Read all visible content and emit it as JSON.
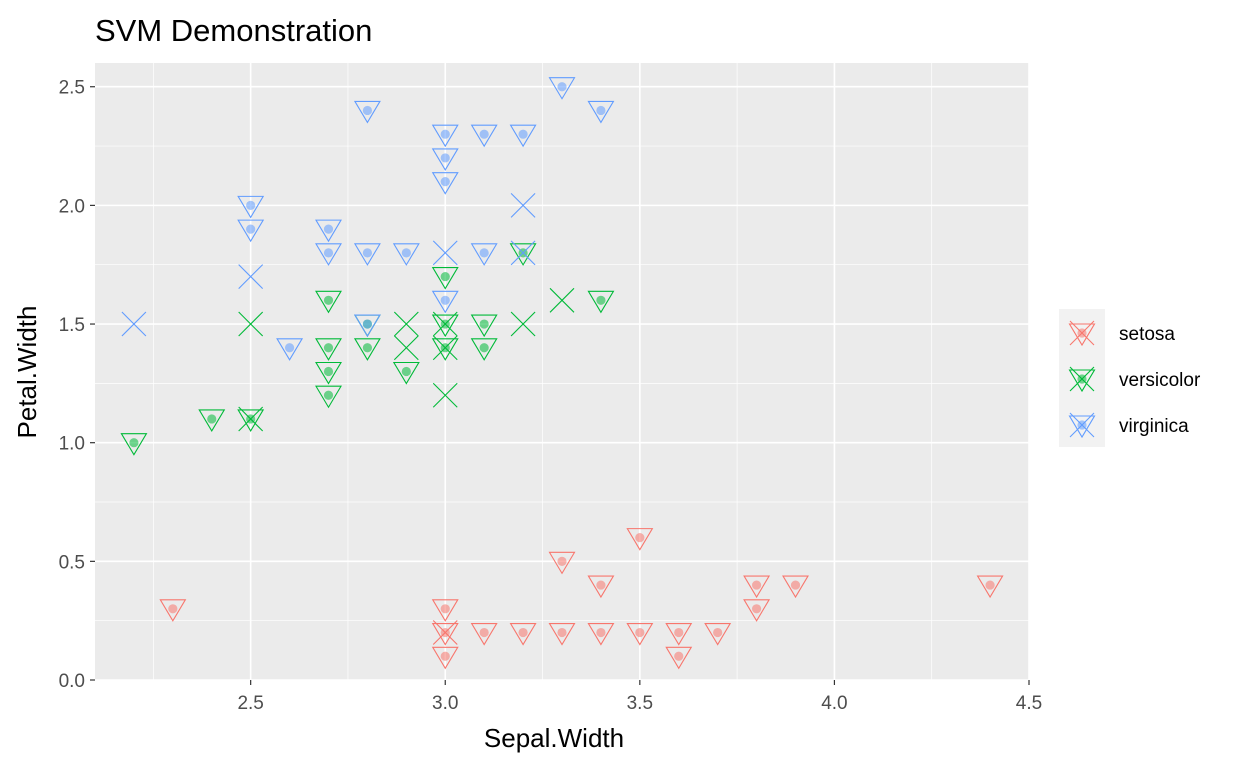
{
  "chart_data": {
    "type": "scatter",
    "title": "SVM Demonstration",
    "xlabel": "Sepal.Width",
    "ylabel": "Petal.Width",
    "xlim": [
      2.1,
      4.5
    ],
    "ylim": [
      0,
      2.6
    ],
    "x_ticks": [
      "2.5",
      "3.0",
      "3.5",
      "4.0",
      "4.5"
    ],
    "y_ticks": [
      "0.0",
      "0.5",
      "1.0",
      "1.5",
      "2.0",
      "2.5"
    ],
    "grid": true,
    "legend_position": "right",
    "panel_color": "#ebebeb",
    "grid_color": "#ffffff",
    "series": [
      {
        "name": "setosa",
        "color": "#f8766d",
        "data_points": [
          [
            2.3,
            0.3
          ],
          [
            3.0,
            0.3
          ],
          [
            3.0,
            0.2
          ],
          [
            3.0,
            0.1
          ],
          [
            3.1,
            0.2
          ],
          [
            3.2,
            0.2
          ],
          [
            3.3,
            0.5
          ],
          [
            3.3,
            0.2
          ],
          [
            3.4,
            0.4
          ],
          [
            3.4,
            0.2
          ],
          [
            3.5,
            0.6
          ],
          [
            3.5,
            0.2
          ],
          [
            3.6,
            0.2
          ],
          [
            3.6,
            0.1
          ],
          [
            3.7,
            0.2
          ],
          [
            3.8,
            0.4
          ],
          [
            3.8,
            0.3
          ],
          [
            3.9,
            0.4
          ],
          [
            4.4,
            0.4
          ]
        ],
        "support_vectors": [
          [
            3.0,
            0.2
          ]
        ]
      },
      {
        "name": "versicolor",
        "color": "#00ba38",
        "data_points": [
          [
            2.2,
            1.0
          ],
          [
            2.4,
            1.1
          ],
          [
            2.5,
            1.1
          ],
          [
            2.7,
            1.6
          ],
          [
            2.7,
            1.4
          ],
          [
            2.7,
            1.3
          ],
          [
            2.7,
            1.2
          ],
          [
            2.8,
            1.5
          ],
          [
            2.8,
            1.4
          ],
          [
            2.9,
            1.3
          ],
          [
            3.0,
            1.7
          ],
          [
            3.0,
            1.5
          ],
          [
            3.0,
            1.4
          ],
          [
            3.1,
            1.5
          ],
          [
            3.1,
            1.4
          ],
          [
            3.2,
            1.8
          ],
          [
            3.4,
            1.6
          ]
        ],
        "support_vectors": [
          [
            2.5,
            1.5
          ],
          [
            2.5,
            1.1
          ],
          [
            2.9,
            1.5
          ],
          [
            2.9,
            1.4
          ],
          [
            3.0,
            1.5
          ],
          [
            3.0,
            1.4
          ],
          [
            3.0,
            1.2
          ],
          [
            3.2,
            1.5
          ],
          [
            3.3,
            1.6
          ]
        ]
      },
      {
        "name": "virginica",
        "color": "#619cff",
        "data_points": [
          [
            2.5,
            2.0
          ],
          [
            2.5,
            1.9
          ],
          [
            2.6,
            1.4
          ],
          [
            2.7,
            1.9
          ],
          [
            2.7,
            1.8
          ],
          [
            2.8,
            2.4
          ],
          [
            2.8,
            1.8
          ],
          [
            2.8,
            1.5
          ],
          [
            2.9,
            1.8
          ],
          [
            3.0,
            2.3
          ],
          [
            3.0,
            2.2
          ],
          [
            3.0,
            2.1
          ],
          [
            3.0,
            1.6
          ],
          [
            3.1,
            2.3
          ],
          [
            3.1,
            1.8
          ],
          [
            3.2,
            2.3
          ],
          [
            3.3,
            2.5
          ],
          [
            3.4,
            2.4
          ]
        ],
        "support_vectors": [
          [
            2.2,
            1.5
          ],
          [
            2.5,
            1.7
          ],
          [
            3.0,
            1.8
          ],
          [
            3.2,
            2.0
          ],
          [
            3.2,
            1.8
          ]
        ]
      }
    ]
  }
}
